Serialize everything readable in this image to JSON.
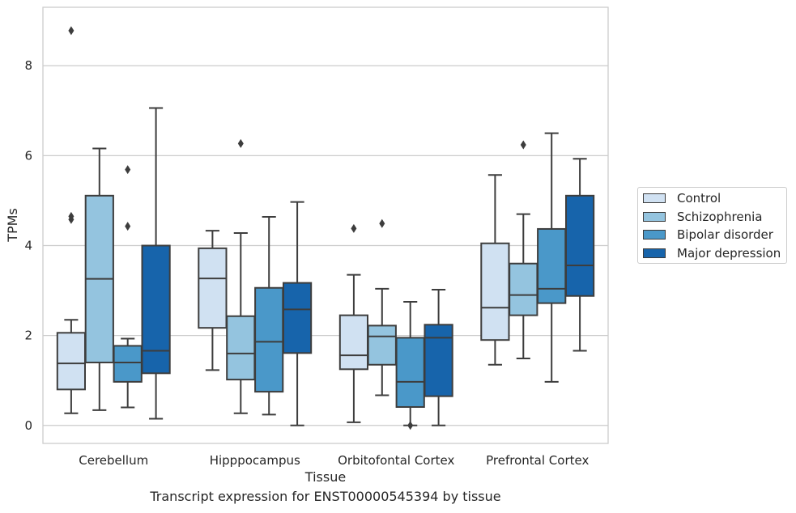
{
  "chart_data": {
    "type": "box",
    "title": "",
    "caption": "Transcript expression for ENST00000545394 by tissue",
    "xlabel": "Tissue",
    "ylabel": "TPMs",
    "ylim": [
      -0.4,
      9.3
    ],
    "yticks": [
      0,
      2,
      4,
      6,
      8
    ],
    "grid": true,
    "legend_position": "right",
    "categories": [
      "Cerebellum",
      "Hipppocampus",
      "Orbitofontal Cortex",
      "Prefrontal Cortex"
    ],
    "series": [
      {
        "name": "Control",
        "color": "#d0e1f2",
        "boxes": [
          {
            "whisker_low": 0.27,
            "q1": 0.8,
            "median": 1.38,
            "q3": 2.06,
            "whisker_high": 2.35,
            "outliers": [
              4.58,
              4.65,
              8.78
            ]
          },
          {
            "whisker_low": 1.23,
            "q1": 2.17,
            "median": 3.27,
            "q3": 3.94,
            "whisker_high": 4.33,
            "outliers": []
          },
          {
            "whisker_low": 0.07,
            "q1": 1.25,
            "median": 1.56,
            "q3": 2.45,
            "whisker_high": 3.35,
            "outliers": [
              4.38
            ]
          },
          {
            "whisker_low": 1.35,
            "q1": 1.9,
            "median": 2.62,
            "q3": 4.05,
            "whisker_high": 5.57,
            "outliers": []
          }
        ]
      },
      {
        "name": "Schizophrenia",
        "color": "#94c4df",
        "boxes": [
          {
            "whisker_low": 0.34,
            "q1": 1.4,
            "median": 3.26,
            "q3": 5.11,
            "whisker_high": 6.16,
            "outliers": []
          },
          {
            "whisker_low": 0.27,
            "q1": 1.02,
            "median": 1.6,
            "q3": 2.43,
            "whisker_high": 4.28,
            "outliers": [
              6.27
            ]
          },
          {
            "whisker_low": 0.67,
            "q1": 1.35,
            "median": 1.98,
            "q3": 2.22,
            "whisker_high": 3.04,
            "outliers": [
              4.49
            ]
          },
          {
            "whisker_low": 1.49,
            "q1": 2.45,
            "median": 2.9,
            "q3": 3.6,
            "whisker_high": 4.7,
            "outliers": [
              6.24
            ]
          }
        ]
      },
      {
        "name": "Bipolar disorder",
        "color": "#4a98c9",
        "boxes": [
          {
            "whisker_low": 0.4,
            "q1": 0.97,
            "median": 1.4,
            "q3": 1.77,
            "whisker_high": 1.93,
            "outliers": [
              4.43,
              5.69
            ]
          },
          {
            "whisker_low": 0.24,
            "q1": 0.75,
            "median": 1.86,
            "q3": 3.06,
            "whisker_high": 4.64,
            "outliers": []
          },
          {
            "whisker_low": 0.0,
            "q1": 0.41,
            "median": 0.97,
            "q3": 1.95,
            "whisker_high": 2.75,
            "outliers": [
              0.0
            ]
          },
          {
            "whisker_low": 0.97,
            "q1": 2.72,
            "median": 3.04,
            "q3": 4.37,
            "whisker_high": 6.5,
            "outliers": []
          }
        ]
      },
      {
        "name": "Major depression",
        "color": "#1764ab",
        "boxes": [
          {
            "whisker_low": 0.15,
            "q1": 1.16,
            "median": 1.66,
            "q3": 4.0,
            "whisker_high": 7.06,
            "outliers": []
          },
          {
            "whisker_low": 0.0,
            "q1": 1.61,
            "median": 2.58,
            "q3": 3.17,
            "whisker_high": 4.97,
            "outliers": []
          },
          {
            "whisker_low": 0.0,
            "q1": 0.65,
            "median": 1.95,
            "q3": 2.24,
            "whisker_high": 3.02,
            "outliers": []
          },
          {
            "whisker_low": 1.66,
            "q1": 2.88,
            "median": 3.56,
            "q3": 5.11,
            "whisker_high": 5.93,
            "outliers": []
          }
        ]
      }
    ]
  }
}
